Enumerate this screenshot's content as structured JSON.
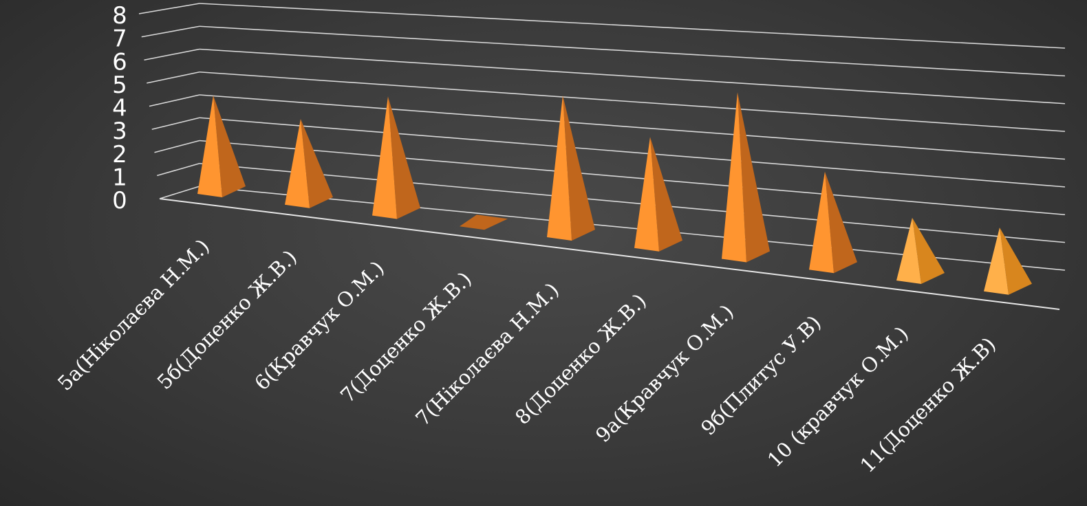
{
  "chart_data": {
    "type": "bar",
    "style": "3d-pyramid",
    "title": "",
    "xlabel": "",
    "ylabel": "",
    "ylim": [
      0,
      8
    ],
    "yticks": [
      "0",
      "1",
      "2",
      "3",
      "4",
      "5",
      "6",
      "7",
      "8"
    ],
    "categories": [
      "5а(Ніколаєва Н.М.)",
      "5б(Доценко Ж.В.)",
      "6(Кравчук О.М.)",
      "7(Доценко Ж.В.)",
      "7(Ніколаєва Н.М.)",
      "8(Доценко Ж.В.)",
      "9а(Кравчук О.М.)",
      "9б(Плитус У.В)",
      "10 (кравчук О.М.)",
      "11(Доценко Ж.В)"
    ],
    "values": [
      5,
      4,
      6,
      0,
      7,
      5,
      8,
      4,
      2,
      2
    ],
    "grid": true,
    "legend": "none",
    "colors": {
      "front": "#ff9530",
      "side": "#c0661c",
      "front_light": "#ffb04a",
      "side_light": "#d8861e",
      "text": "#ffffff",
      "grid": "#d8d8d8"
    }
  }
}
